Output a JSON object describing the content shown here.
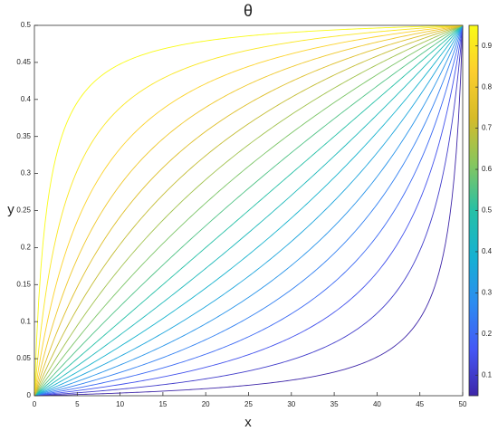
{
  "chart_data": {
    "type": "contour",
    "title": "θ",
    "x_label": "x",
    "y_label": "y",
    "xlim": [
      0,
      50
    ],
    "xticks": [
      0,
      5,
      10,
      15,
      20,
      25,
      30,
      35,
      40,
      45,
      50
    ],
    "ylim": [
      0,
      0.5
    ],
    "yticks": [
      0,
      0.05,
      0.1,
      0.15,
      0.2,
      0.25,
      0.3,
      0.35,
      0.4,
      0.45,
      0.5
    ],
    "levels": [
      0.05,
      0.1,
      0.15,
      0.2,
      0.25,
      0.3,
      0.35,
      0.4,
      0.45,
      0.5,
      0.55,
      0.6,
      0.65,
      0.7,
      0.75,
      0.8,
      0.85,
      0.9,
      0.95
    ],
    "clim": [
      0.05,
      0.95
    ],
    "cticks": [
      0.1,
      0.2,
      0.3,
      0.4,
      0.5,
      0.6,
      0.7,
      0.8,
      0.9
    ],
    "colormap": [
      "#3e26a8",
      "#4457f5",
      "#2d8cf0",
      "#15b1d2",
      "#26c0a6",
      "#86c65f",
      "#d6bb29",
      "#fcce2e",
      "#f9fb15"
    ],
    "colorbar": true
  }
}
